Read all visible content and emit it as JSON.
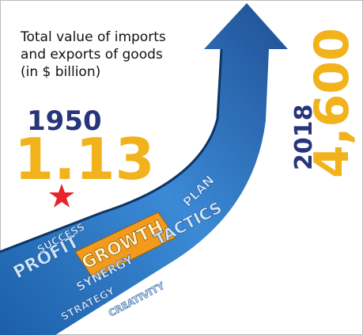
{
  "header": {
    "title_lines": [
      "Total value of imports",
      "and exports of goods",
      "(in $ billion)"
    ]
  },
  "stats": [
    {
      "year": "1950",
      "value": "1.13"
    },
    {
      "year": "2018",
      "value": "4,600"
    }
  ],
  "arrow_words": [
    "PROFIT",
    "SUCCESS",
    "SYNERGY",
    "STRATEGY",
    "CREATIVITY",
    "GROWTH",
    "TACTICS",
    "PLAN"
  ]
}
